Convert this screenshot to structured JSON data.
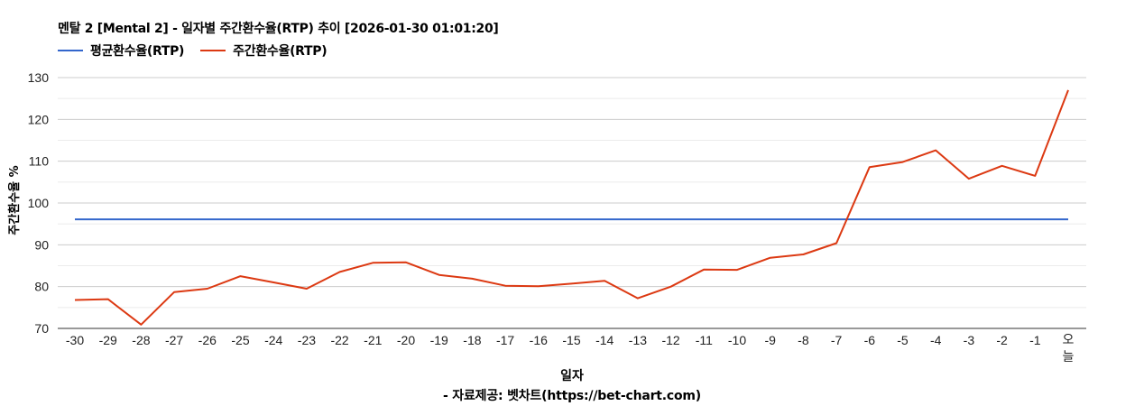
{
  "title": "멘탈 2 [Mental 2] - 일자별 주간환수율(RTP) 추이 [2026-01-30 01:01:20]",
  "legend": [
    {
      "label": "평균환수율(RTP)",
      "color": "#3366cc"
    },
    {
      "label": "주간환수율(RTP)",
      "color": "#dc3912"
    }
  ],
  "axes": {
    "ylabel": "주간환수율 %",
    "xlabel": "일자"
  },
  "source": "- 자료제공: 벳차트(https://bet-chart.com)",
  "chart_data": {
    "type": "line",
    "title": "멘탈 2 [Mental 2] - 일자별 주간환수율(RTP) 추이 [2026-01-30 01:01:20]",
    "xlabel": "일자",
    "ylabel": "주간환수율 %",
    "ylim": [
      70,
      130
    ],
    "yticks": [
      70,
      80,
      90,
      100,
      110,
      120,
      130
    ],
    "grid": true,
    "legend_position": "top-left",
    "categories": [
      "-30",
      "-29",
      "-28",
      "-27",
      "-26",
      "-25",
      "-24",
      "-23",
      "-22",
      "-21",
      "-20",
      "-19",
      "-18",
      "-17",
      "-16",
      "-15",
      "-14",
      "-13",
      "-12",
      "-11",
      "-10",
      "-9",
      "-8",
      "-7",
      "-6",
      "-5",
      "-4",
      "-3",
      "-2",
      "-1",
      "오늘"
    ],
    "series": [
      {
        "name": "평균환수율(RTP)",
        "color": "#3366cc",
        "values": [
          96.1,
          96.1,
          96.1,
          96.1,
          96.1,
          96.1,
          96.1,
          96.1,
          96.1,
          96.1,
          96.1,
          96.1,
          96.1,
          96.1,
          96.1,
          96.1,
          96.1,
          96.1,
          96.1,
          96.1,
          96.1,
          96.1,
          96.1,
          96.1,
          96.1,
          96.1,
          96.1,
          96.1,
          96.1,
          96.1,
          96.1
        ]
      },
      {
        "name": "주간환수율(RTP)",
        "color": "#dc3912",
        "values": [
          76.8,
          77.0,
          70.9,
          78.7,
          79.5,
          82.5,
          81.0,
          79.5,
          83.5,
          85.7,
          85.8,
          82.8,
          81.9,
          80.2,
          80.1,
          80.7,
          81.4,
          77.2,
          80.0,
          84.1,
          84.0,
          86.9,
          87.7,
          90.4,
          108.6,
          109.8,
          112.6,
          105.8,
          108.9,
          106.5,
          127.0
        ]
      }
    ]
  }
}
